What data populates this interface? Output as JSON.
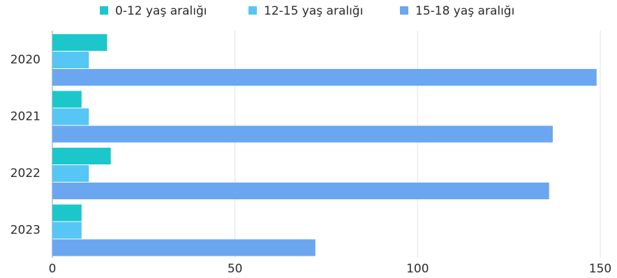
{
  "chart_data": {
    "type": "bar",
    "orientation": "horizontal",
    "categories": [
      "2020",
      "2021",
      "2022",
      "2023"
    ],
    "series": [
      {
        "name": "0-12 yaş aralığı",
        "values": [
          15,
          8,
          16,
          8
        ],
        "color": "#1cc7cc"
      },
      {
        "name": "12-15 yaş aralığı",
        "values": [
          10,
          10,
          10,
          8
        ],
        "color": "#56c6f4"
      },
      {
        "name": "15-18 yaş aralığı",
        "values": [
          149,
          137,
          136,
          72
        ],
        "color": "#6aa7f0"
      }
    ],
    "xlim": [
      0,
      150
    ],
    "xticks": [
      "0",
      "50",
      "100",
      "150"
    ],
    "grid": true,
    "legend": "top"
  }
}
